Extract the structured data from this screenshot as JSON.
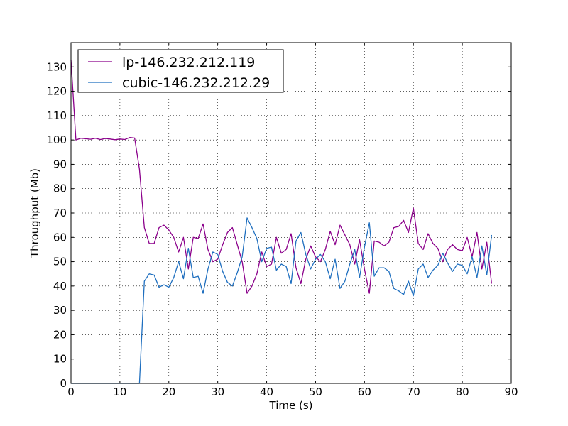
{
  "chart_data": {
    "type": "line",
    "title": "",
    "xlabel": "Time (s)",
    "ylabel": "Throughput (Mb)",
    "xlim": [
      0,
      90
    ],
    "ylim": [
      0,
      140
    ],
    "xticks": [
      0,
      10,
      20,
      30,
      40,
      50,
      60,
      70,
      80,
      90
    ],
    "yticks": [
      0,
      10,
      20,
      30,
      40,
      50,
      60,
      70,
      80,
      90,
      100,
      110,
      120,
      130
    ],
    "grid": true,
    "legend_position": "top-left",
    "series": [
      {
        "name": "lp-146.232.212.119",
        "color": "#8b008b",
        "x": [
          0,
          1,
          2,
          3,
          4,
          5,
          6,
          7,
          8,
          9,
          10,
          11,
          12,
          13,
          14,
          15,
          16,
          17,
          18,
          19,
          20,
          21,
          22,
          23,
          24,
          25,
          26,
          27,
          28,
          29,
          30,
          31,
          32,
          33,
          34,
          35,
          36,
          37,
          38,
          39,
          40,
          41,
          42,
          43,
          44,
          45,
          46,
          47,
          48,
          49,
          50,
          51,
          52,
          53,
          54,
          55,
          56,
          57,
          58,
          59,
          60,
          61,
          62,
          63,
          64,
          65,
          66,
          67,
          68,
          69,
          70,
          71,
          72,
          73,
          74,
          75,
          76,
          77,
          78,
          79,
          80,
          81,
          82,
          83,
          84,
          85,
          86
        ],
        "y": [
          133,
          100,
          100.7,
          100.5,
          100.3,
          100.7,
          100.2,
          100.6,
          100.4,
          100.1,
          100.4,
          100.2,
          101,
          100.8,
          88,
          64,
          57.5,
          57.5,
          64,
          65,
          63,
          60,
          54,
          60,
          47,
          60,
          59.5,
          65.5,
          55,
          50,
          51,
          57,
          62,
          64,
          57,
          50,
          37,
          40,
          45,
          54,
          48,
          49,
          60,
          53.5,
          55,
          61.5,
          47.5,
          41,
          51,
          56.5,
          52,
          50,
          55,
          62.5,
          57,
          65,
          61,
          57,
          49,
          59,
          47,
          37,
          58.5,
          58,
          56.5,
          58,
          64,
          64.5,
          67,
          62,
          72,
          57.5,
          55,
          61.5,
          57.5,
          55.5,
          50,
          55,
          57,
          55,
          54.5,
          60,
          52,
          62,
          47,
          58,
          41
        ]
      },
      {
        "name": "cubic-146.232.212.29",
        "color": "#1f6fbf",
        "x": [
          0,
          1,
          2,
          3,
          4,
          5,
          6,
          7,
          8,
          9,
          10,
          11,
          12,
          13,
          14,
          15,
          16,
          17,
          18,
          19,
          20,
          21,
          22,
          23,
          24,
          25,
          26,
          27,
          28,
          29,
          30,
          31,
          32,
          33,
          34,
          35,
          36,
          37,
          38,
          39,
          40,
          41,
          42,
          43,
          44,
          45,
          46,
          47,
          48,
          49,
          50,
          51,
          52,
          53,
          54,
          55,
          56,
          57,
          58,
          59,
          60,
          61,
          62,
          63,
          64,
          65,
          66,
          67,
          68,
          69,
          70,
          71,
          72,
          73,
          74,
          75,
          76,
          77,
          78,
          79,
          80,
          81,
          82,
          83,
          84,
          85,
          86
        ],
        "y": [
          0,
          0,
          0,
          0,
          0,
          0,
          0,
          0,
          0,
          0,
          0,
          0,
          0,
          0,
          0,
          42,
          45,
          44.5,
          39.5,
          40.5,
          39.5,
          43.5,
          50,
          43,
          55.5,
          43.5,
          44,
          37,
          47,
          54,
          53,
          46,
          41.5,
          40,
          45.5,
          52,
          68,
          64,
          59.5,
          50,
          55.5,
          56,
          46.5,
          49,
          48,
          41,
          58.5,
          62,
          53,
          47,
          51,
          53,
          50,
          43,
          51,
          39,
          42,
          49,
          55,
          43.5,
          56,
          66,
          44,
          47.5,
          47.5,
          46,
          39,
          38,
          36.5,
          42,
          36,
          47,
          49,
          43.5,
          46.5,
          48.5,
          53.5,
          49.5,
          46,
          49,
          48.5,
          45,
          52,
          43.5,
          56.5,
          44.5,
          61
        ]
      }
    ]
  }
}
